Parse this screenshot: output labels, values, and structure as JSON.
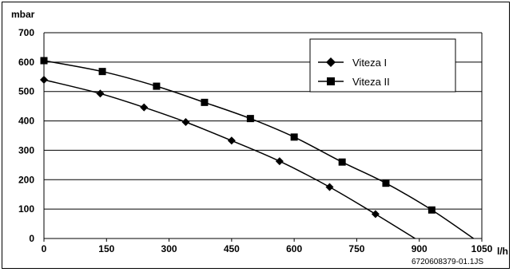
{
  "chart_data": {
    "type": "line",
    "title": "",
    "xlabel": "l/h",
    "ylabel": "mbar",
    "xlim": [
      0,
      1050
    ],
    "ylim": [
      0,
      700
    ],
    "x_ticks": [
      "0",
      "150",
      "300",
      "450",
      "600",
      "750",
      "900",
      "1050"
    ],
    "y_ticks": [
      "0",
      "100",
      "200",
      "300",
      "400",
      "500",
      "600",
      "700"
    ],
    "grid": "horizontal",
    "legend_position": "top-right",
    "series": [
      {
        "name": "Viteza I",
        "marker": "diamond",
        "points": [
          [
            0,
            540
          ],
          [
            135,
            493
          ],
          [
            240,
            446
          ],
          [
            340,
            396
          ],
          [
            450,
            333
          ],
          [
            565,
            263
          ],
          [
            685,
            175
          ],
          [
            795,
            83
          ]
        ],
        "curve_end": [
          890,
          0
        ]
      },
      {
        "name": "Viteza II",
        "marker": "square",
        "points": [
          [
            0,
            605
          ],
          [
            140,
            568
          ],
          [
            270,
            518
          ],
          [
            385,
            463
          ],
          [
            495,
            408
          ],
          [
            600,
            345
          ],
          [
            715,
            260
          ],
          [
            820,
            188
          ],
          [
            930,
            97
          ]
        ],
        "curve_end": [
          1030,
          0
        ]
      }
    ],
    "annotation": "6720608379-01.1JS"
  }
}
